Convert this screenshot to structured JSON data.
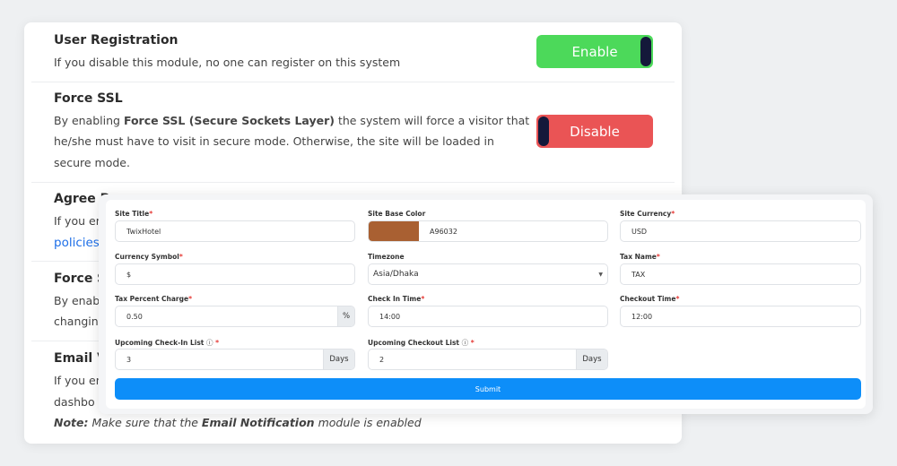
{
  "modules": [
    {
      "title": "User Registration",
      "desc": [
        "If you disable this module, no one can register on this system"
      ],
      "toggle": "Enable"
    },
    {
      "title": "Force SSL",
      "desc_prefix": "By enabling ",
      "desc_bold": "Force SSL (Secure Sockets Layer)",
      "desc_suffix": " the system will force a visitor that",
      "desc": [
        "he/she must have to visit in secure mode. Otherwise, the site will be loaded in",
        "secure mode."
      ],
      "toggle": "Disable"
    },
    {
      "title": "Agree P",
      "desc": [
        "If you en",
        "policies"
      ]
    },
    {
      "title": "Force S",
      "desc": [
        "By enab",
        "changin"
      ]
    },
    {
      "title": "Email V",
      "desc": [
        "If you en",
        "dashbo"
      ],
      "note_label": "Note:",
      "note_prefix": " Make sure that the ",
      "note_bold": "Email Notification",
      "note_suffix": " module is enabled"
    }
  ],
  "colors": {
    "enable": "#4cd95a",
    "disable": "#ea5455",
    "link": "#1e6fe8",
    "submit": "#0d8ef9",
    "base_color": "#A96032"
  },
  "form": {
    "site_title": {
      "label": "Site Title",
      "value": "TwixHotel"
    },
    "site_base_color": {
      "label": "Site Base Color",
      "value": "A96032"
    },
    "site_currency": {
      "label": "Site Currency",
      "value": "USD"
    },
    "currency_symbol": {
      "label": "Currency Symbol",
      "value": "$"
    },
    "timezone": {
      "label": "Timezone",
      "value": "Asia/Dhaka"
    },
    "tax_name": {
      "label": "Tax Name",
      "value": "TAX"
    },
    "tax_percent": {
      "label": "Tax Percent Charge",
      "value": "0.50",
      "addon": "%"
    },
    "check_in_time": {
      "label": "Check In Time",
      "value": "14:00"
    },
    "checkout_time": {
      "label": "Checkout Time",
      "value": "12:00"
    },
    "upcoming_checkin": {
      "label": "Upcoming Check-In List",
      "value": "3",
      "addon": "Days"
    },
    "upcoming_checkout": {
      "label": "Upcoming Checkout List",
      "value": "2",
      "addon": "Days"
    },
    "required_mark": "*",
    "info_icon": "ⓘ",
    "submit": "Submit"
  }
}
